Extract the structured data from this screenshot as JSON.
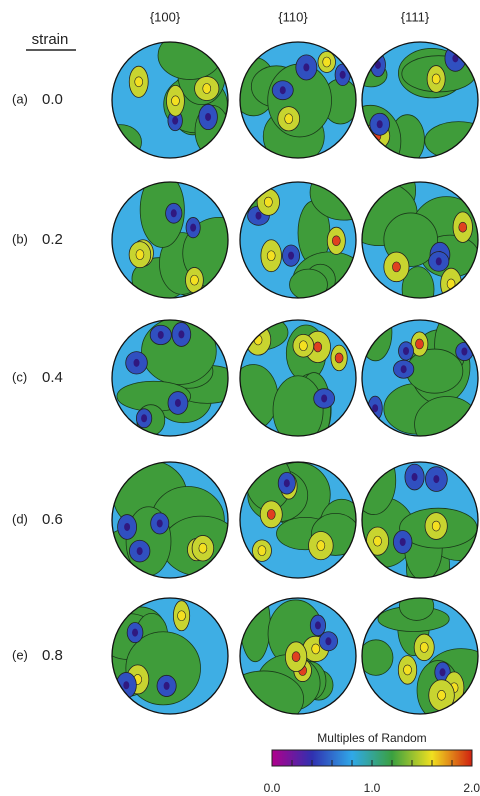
{
  "column_headers": [
    "{100}",
    "{110}",
    "{111}"
  ],
  "row_header": "strain",
  "rows": [
    {
      "label": "(a)",
      "strain": "0.0"
    },
    {
      "label": "(b)",
      "strain": "0.2"
    },
    {
      "label": "(c)",
      "strain": "0.4"
    },
    {
      "label": "(d)",
      "strain": "0.6"
    },
    {
      "label": "(e)",
      "strain": "0.8"
    }
  ],
  "colorbar": {
    "title": "Multiples of Random",
    "ticks": [
      "0.0",
      "1.0",
      "2.0"
    ]
  }
}
